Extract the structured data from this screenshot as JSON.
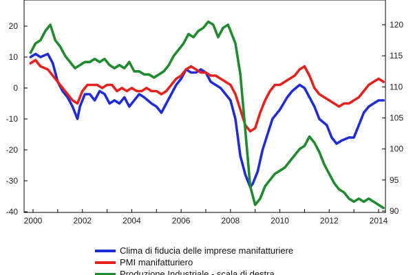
{
  "chart_data": {
    "type": "line",
    "x_ticks": [
      "2000",
      "2002",
      "2004",
      "2006",
      "2008",
      "2010",
      "2012",
      "2014"
    ],
    "x_range": [
      1999.9,
      2014.2
    ],
    "y_left_ticks": [
      "20",
      "10",
      "0",
      "-10",
      "-20",
      "-30",
      "-40"
    ],
    "y_left_range": [
      -40,
      26
    ],
    "y_right_ticks": [
      "120",
      "115",
      "110",
      "105",
      "100",
      "95",
      "90"
    ],
    "y_right_range": [
      90,
      123
    ],
    "grid": false,
    "legend_position": "bottom",
    "series": [
      {
        "name": "Clima di fiducia delle imprese manifatturiere",
        "axis": "left",
        "color": "#1f2bd6",
        "x": [
          1999.9,
          2000.1,
          2000.3,
          2000.6,
          2000.8,
          2001.0,
          2001.2,
          2001.4,
          2001.6,
          2001.8,
          2001.9,
          2002.1,
          2002.3,
          2002.5,
          2002.7,
          2002.9,
          2003.1,
          2003.3,
          2003.5,
          2003.7,
          2003.9,
          2004.1,
          2004.3,
          2004.5,
          2004.8,
          2005.0,
          2005.2,
          2005.4,
          2005.6,
          2005.8,
          2006.0,
          2006.2,
          2006.4,
          2006.6,
          2006.8,
          2007.0,
          2007.2,
          2007.4,
          2007.6,
          2007.8,
          2008.0,
          2008.2,
          2008.4,
          2008.6,
          2008.8,
          2008.9,
          2009.1,
          2009.3,
          2009.5,
          2009.7,
          2010.0,
          2010.3,
          2010.5,
          2010.8,
          2011.0,
          2011.2,
          2011.4,
          2011.6,
          2011.9,
          2012.1,
          2012.3,
          2012.5,
          2012.8,
          2013.0,
          2013.2,
          2013.4,
          2013.6,
          2013.8,
          2014.0,
          2014.2
        ],
        "values": [
          10,
          11,
          10,
          11,
          8,
          2,
          -1,
          -3,
          -6,
          -10,
          -6,
          -2,
          -2,
          -4,
          -1,
          -2,
          -5,
          -4,
          -5,
          -3,
          -6,
          -4,
          -2,
          -3,
          -5,
          -6,
          -8,
          -5,
          -2,
          1,
          3,
          6,
          5,
          5,
          6,
          5,
          2,
          1,
          0,
          -2,
          -4,
          -10,
          -22,
          -28,
          -32,
          -31,
          -27,
          -20,
          -15,
          -10,
          -7,
          -3,
          -1,
          1,
          0,
          -3,
          -6,
          -10,
          -12,
          -16,
          -18,
          -17,
          -16,
          -16,
          -12,
          -8,
          -6,
          -5,
          -4,
          -4
        ]
      },
      {
        "name": "PMI manifatturiero",
        "axis": "left",
        "color": "#e8201c",
        "x": [
          1999.9,
          2000.1,
          2000.3,
          2000.6,
          2000.8,
          2001.0,
          2001.2,
          2001.4,
          2001.6,
          2001.8,
          2002.0,
          2002.2,
          2002.4,
          2002.6,
          2002.8,
          2003.0,
          2003.2,
          2003.4,
          2003.6,
          2003.8,
          2004.0,
          2004.2,
          2004.4,
          2004.6,
          2004.8,
          2005.0,
          2005.2,
          2005.4,
          2005.6,
          2005.8,
          2006.0,
          2006.2,
          2006.4,
          2006.6,
          2006.8,
          2007.0,
          2007.2,
          2007.4,
          2007.6,
          2007.8,
          2008.0,
          2008.2,
          2008.4,
          2008.6,
          2008.8,
          2009.0,
          2009.2,
          2009.4,
          2009.6,
          2009.8,
          2010.0,
          2010.2,
          2010.4,
          2010.6,
          2010.8,
          2011.0,
          2011.2,
          2011.4,
          2011.6,
          2011.8,
          2012.0,
          2012.2,
          2012.4,
          2012.6,
          2012.8,
          2013.0,
          2013.2,
          2013.4,
          2013.6,
          2013.8,
          2014.0,
          2014.2
        ],
        "values": [
          8,
          9,
          7,
          6,
          4,
          2,
          0,
          -2,
          -4,
          -5,
          -1,
          1,
          1,
          1,
          0,
          1,
          1,
          -1,
          0,
          -1,
          0,
          -1,
          -1,
          0,
          -1,
          -1,
          -2,
          -1,
          1,
          3,
          4,
          6,
          7,
          6,
          5,
          5,
          4,
          4,
          3,
          2,
          1,
          -2,
          -7,
          -12,
          -14,
          -13,
          -8,
          -4,
          -1,
          1,
          1,
          2,
          3,
          4,
          6,
          7,
          4,
          0,
          -2,
          -3,
          -4,
          -5,
          -6,
          -5,
          -5,
          -4,
          -3,
          -1,
          1,
          2,
          3,
          2
        ]
      },
      {
        "name": "Produzione Industriale - scala di destra",
        "axis": "right",
        "color": "#1f8a2e",
        "x": [
          1999.9,
          2000.1,
          2000.3,
          2000.5,
          2000.7,
          2000.9,
          2001.1,
          2001.3,
          2001.5,
          2001.7,
          2001.9,
          2002.1,
          2002.3,
          2002.5,
          2002.7,
          2002.9,
          2003.1,
          2003.3,
          2003.5,
          2003.7,
          2003.9,
          2004.1,
          2004.3,
          2004.5,
          2004.7,
          2004.9,
          2005.1,
          2005.3,
          2005.5,
          2005.7,
          2005.9,
          2006.1,
          2006.3,
          2006.5,
          2006.7,
          2006.9,
          2007.1,
          2007.3,
          2007.5,
          2007.7,
          2007.9,
          2008.0,
          2008.2,
          2008.4,
          2008.6,
          2008.8,
          2009.0,
          2009.2,
          2009.4,
          2009.6,
          2009.8,
          2010.0,
          2010.2,
          2010.4,
          2010.6,
          2010.8,
          2011.0,
          2011.2,
          2011.4,
          2011.6,
          2011.8,
          2012.0,
          2012.2,
          2012.4,
          2012.6,
          2012.8,
          2013.0,
          2013.2,
          2013.4,
          2013.6,
          2013.8,
          2014.0,
          2014.2
        ],
        "values": [
          115.5,
          117,
          117.5,
          119,
          120,
          117.5,
          116.5,
          115,
          114,
          113,
          113.5,
          114,
          114,
          114.5,
          114,
          114.5,
          113.5,
          113,
          113.5,
          113,
          114,
          112.5,
          112.5,
          112,
          112,
          111.5,
          112,
          112.5,
          113.5,
          115,
          116,
          117,
          118.5,
          118,
          119,
          119.5,
          120.5,
          120,
          118,
          119.5,
          120,
          119,
          117,
          112,
          103,
          94,
          91,
          92,
          94,
          95,
          96,
          96.5,
          97,
          98,
          99,
          100,
          100.5,
          102,
          101,
          99.5,
          97.5,
          96,
          94.5,
          93.5,
          93,
          92,
          91.5,
          92,
          91.5,
          92,
          91.5,
          91,
          90.5
        ]
      }
    ]
  }
}
